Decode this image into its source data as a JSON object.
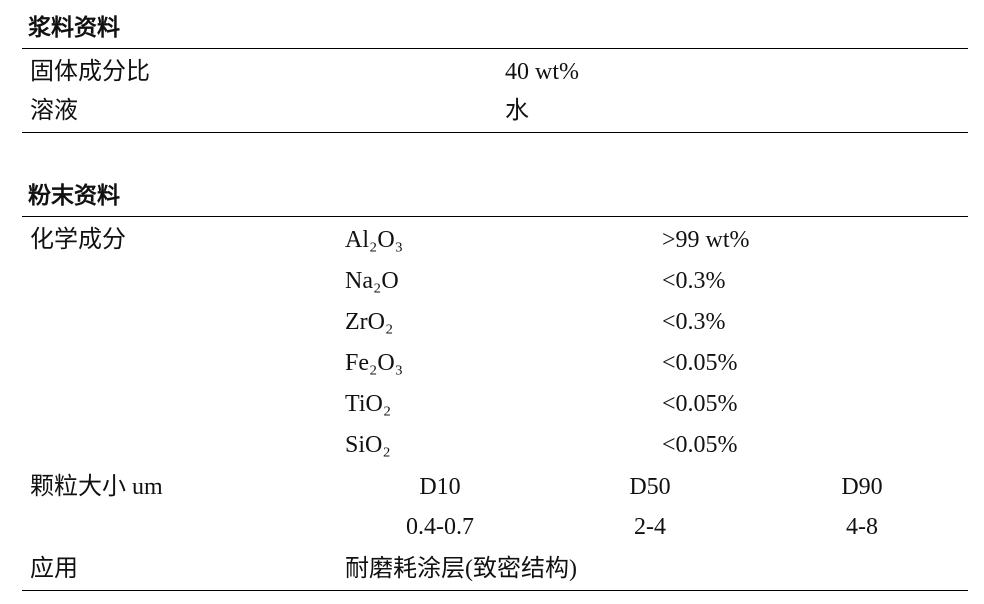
{
  "slurry": {
    "title": "浆料资料",
    "rows": [
      {
        "label": "固体成分比",
        "value": "40 wt%"
      },
      {
        "label": "溶液",
        "value": "水"
      }
    ]
  },
  "powder": {
    "title": "粉末资料",
    "composition": {
      "label": "化学成分",
      "items": [
        {
          "compound": "Al₂O₃",
          "content": ">99 wt%"
        },
        {
          "compound": "Na₂O",
          "content": "<0.3%"
        },
        {
          "compound": "ZrO₂",
          "content": "<0.3%"
        },
        {
          "compound": "Fe₂O₃",
          "content": "<0.05%"
        },
        {
          "compound": "TiO₂",
          "content": "<0.05%"
        },
        {
          "compound": "SiO₂",
          "content": "<0.05%"
        }
      ]
    },
    "particle_size": {
      "label": "颗粒大小 um",
      "headers": [
        "D10",
        "D50",
        "D90"
      ],
      "values": [
        "0.4-0.7",
        "2-4",
        "4-8"
      ]
    },
    "application": {
      "label": "应用",
      "value": "耐磨耗涂层(致密结构)"
    }
  }
}
